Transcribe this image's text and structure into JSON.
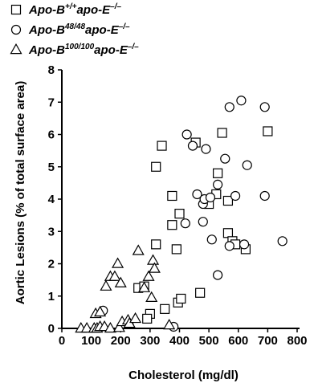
{
  "chart_data": {
    "type": "scatter",
    "title": "",
    "xlabel": "Cholesterol (mg/dl)",
    "ylabel": "Aortic Lesions (% of total surface area)",
    "xlim": [
      0,
      800
    ],
    "ylim": [
      0,
      8
    ],
    "xticks": [
      "0",
      "100",
      "200",
      "300",
      "400",
      "500",
      "600",
      "700",
      "800"
    ],
    "yticks": [
      "0",
      "1",
      "2",
      "3",
      "4",
      "5",
      "6",
      "7",
      "8"
    ],
    "grid": false,
    "legend_position": "top-left",
    "series": [
      {
        "marker": "square",
        "legend": {
          "base": "Apo-B",
          "sup1": "+/+",
          "mid": "apo-E",
          "sup2": "–/–"
        },
        "points": [
          [
            320,
            5.0
          ],
          [
            340,
            5.65
          ],
          [
            375,
            4.1
          ],
          [
            375,
            3.2
          ],
          [
            390,
            2.45
          ],
          [
            400,
            3.55
          ],
          [
            320,
            2.6
          ],
          [
            300,
            0.45
          ],
          [
            290,
            0.3
          ],
          [
            260,
            1.25
          ],
          [
            280,
            1.3
          ],
          [
            350,
            0.6
          ],
          [
            395,
            0.8
          ],
          [
            405,
            0.92
          ],
          [
            470,
            1.1
          ],
          [
            455,
            5.75
          ],
          [
            530,
            4.8
          ],
          [
            545,
            6.05
          ],
          [
            525,
            4.15
          ],
          [
            500,
            3.85
          ],
          [
            565,
            3.95
          ],
          [
            565,
            2.95
          ],
          [
            580,
            2.7
          ],
          [
            590,
            2.6
          ],
          [
            625,
            2.45
          ],
          [
            700,
            6.1
          ]
        ]
      },
      {
        "marker": "circle",
        "legend": {
          "base": "Apo-B",
          "sup1": "48/48",
          "mid": "apo-E",
          "sup2": "–/–"
        },
        "points": [
          [
            140,
            0.55
          ],
          [
            380,
            0.05
          ],
          [
            420,
            3.25
          ],
          [
            425,
            6.0
          ],
          [
            445,
            5.65
          ],
          [
            460,
            4.15
          ],
          [
            480,
            3.3
          ],
          [
            480,
            3.85
          ],
          [
            485,
            4.0
          ],
          [
            490,
            5.55
          ],
          [
            505,
            4.05
          ],
          [
            510,
            2.75
          ],
          [
            530,
            1.65
          ],
          [
            530,
            4.45
          ],
          [
            555,
            5.25
          ],
          [
            570,
            6.85
          ],
          [
            570,
            2.55
          ],
          [
            590,
            4.1
          ],
          [
            610,
            7.05
          ],
          [
            620,
            2.6
          ],
          [
            630,
            5.05
          ],
          [
            690,
            6.85
          ],
          [
            690,
            4.1
          ],
          [
            750,
            2.7
          ]
        ]
      },
      {
        "marker": "triangle",
        "legend": {
          "base": "Apo-B",
          "sup1": "100/100",
          "mid": "apo-E",
          "sup2": "–/–"
        },
        "points": [
          [
            65,
            0.0
          ],
          [
            85,
            0.0
          ],
          [
            110,
            0.0
          ],
          [
            120,
            0.0
          ],
          [
            130,
            0.05
          ],
          [
            145,
            0.05
          ],
          [
            165,
            0.0
          ],
          [
            195,
            0.02
          ],
          [
            115,
            0.45
          ],
          [
            130,
            0.5
          ],
          [
            150,
            1.3
          ],
          [
            165,
            1.6
          ],
          [
            180,
            1.6
          ],
          [
            190,
            2.0
          ],
          [
            200,
            1.4
          ],
          [
            205,
            0.2
          ],
          [
            225,
            0.25
          ],
          [
            230,
            0.15
          ],
          [
            250,
            0.3
          ],
          [
            260,
            2.4
          ],
          [
            280,
            1.25
          ],
          [
            295,
            1.6
          ],
          [
            305,
            0.95
          ],
          [
            310,
            2.1
          ],
          [
            315,
            1.85
          ],
          [
            365,
            0.1
          ]
        ]
      }
    ]
  }
}
